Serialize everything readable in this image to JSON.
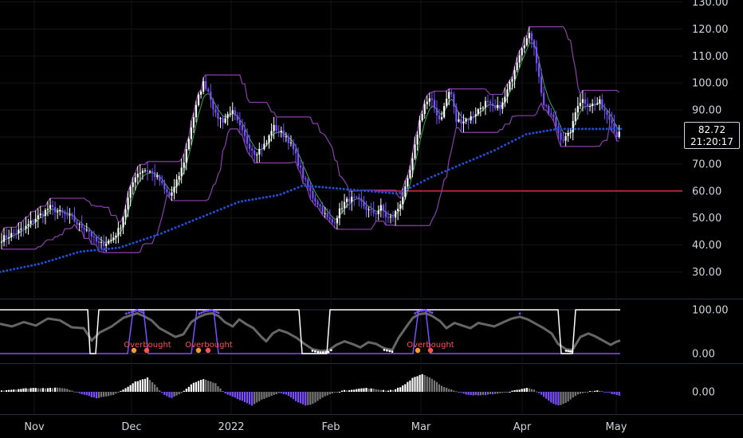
{
  "chart_data": [
    {
      "type": "candlestick",
      "panel": "price",
      "x_ticks": [
        "Nov",
        "Dec",
        "2022",
        "Feb",
        "Mar",
        "Apr",
        "May"
      ],
      "y_ticks": [
        "30.00",
        "40.00",
        "50.00",
        "60.00",
        "70.00",
        "80.00",
        "90.00",
        "100.00",
        "110.00",
        "120.00",
        "130.00"
      ],
      "ylim": [
        26,
        132
      ],
      "last_price": "82.72",
      "countdown": "21:20:17",
      "horizontal_line": {
        "value": 60,
        "color": "#b22234"
      },
      "close_path": [
        [
          0,
          42
        ],
        [
          15,
          44
        ],
        [
          30,
          46
        ],
        [
          45,
          50
        ],
        [
          55,
          52
        ],
        [
          62,
          54
        ],
        [
          75,
          52
        ],
        [
          90,
          50
        ],
        [
          100,
          47
        ],
        [
          110,
          46
        ],
        [
          118,
          42
        ],
        [
          125,
          40
        ],
        [
          133,
          41
        ],
        [
          140,
          42
        ],
        [
          150,
          46
        ],
        [
          158,
          54
        ],
        [
          163,
          60
        ],
        [
          170,
          66
        ],
        [
          180,
          68
        ],
        [
          190,
          67
        ],
        [
          200,
          64
        ],
        [
          207,
          60
        ],
        [
          213,
          58
        ],
        [
          220,
          62
        ],
        [
          230,
          70
        ],
        [
          240,
          84
        ],
        [
          250,
          96
        ],
        [
          255,
          100
        ],
        [
          260,
          98
        ],
        [
          265,
          94
        ],
        [
          270,
          88
        ],
        [
          280,
          86
        ],
        [
          290,
          90
        ],
        [
          300,
          84
        ],
        [
          310,
          78
        ],
        [
          320,
          74
        ],
        [
          328,
          76
        ],
        [
          335,
          78
        ],
        [
          342,
          84
        ],
        [
          350,
          82
        ],
        [
          360,
          80
        ],
        [
          370,
          74
        ],
        [
          378,
          67
        ],
        [
          385,
          62
        ],
        [
          392,
          58
        ],
        [
          400,
          55
        ],
        [
          410,
          50
        ],
        [
          418,
          48
        ],
        [
          425,
          52
        ],
        [
          430,
          55
        ],
        [
          438,
          57
        ],
        [
          445,
          57
        ],
        [
          452,
          56
        ],
        [
          458,
          54
        ],
        [
          465,
          52
        ],
        [
          472,
          52
        ],
        [
          478,
          54
        ],
        [
          485,
          50
        ],
        [
          492,
          50
        ],
        [
          500,
          54
        ],
        [
          510,
          62
        ],
        [
          518,
          72
        ],
        [
          525,
          84
        ],
        [
          532,
          92
        ],
        [
          540,
          94
        ],
        [
          546,
          90
        ],
        [
          552,
          86
        ],
        [
          560,
          94
        ],
        [
          565,
          98
        ],
        [
          572,
          86
        ],
        [
          580,
          86
        ],
        [
          590,
          87
        ],
        [
          600,
          90
        ],
        [
          610,
          93
        ],
        [
          620,
          90
        ],
        [
          630,
          92
        ],
        [
          640,
          100
        ],
        [
          648,
          108
        ],
        [
          655,
          114
        ],
        [
          660,
          116
        ],
        [
          665,
          118
        ],
        [
          670,
          114
        ],
        [
          676,
          102
        ],
        [
          682,
          92
        ],
        [
          688,
          89
        ],
        [
          694,
          87
        ],
        [
          700,
          82
        ],
        [
          705,
          79
        ],
        [
          712,
          80
        ],
        [
          718,
          84
        ],
        [
          724,
          92
        ],
        [
          730,
          94
        ],
        [
          738,
          92
        ],
        [
          746,
          92
        ],
        [
          752,
          93
        ],
        [
          758,
          90
        ],
        [
          763,
          88
        ],
        [
          768,
          86
        ],
        [
          772,
          80
        ],
        [
          777,
          82.72
        ]
      ],
      "series": [
        {
          "name": "",
          "color": "#1e4fd8",
          "style": "dotted",
          "points": [
            [
              0,
              30
            ],
            [
              50,
              33
            ],
            [
              100,
              37.5
            ],
            [
              150,
              39
            ],
            [
              200,
              44
            ],
            [
              250,
              50
            ],
            [
              300,
              56
            ],
            [
              350,
              58.5
            ],
            [
              380,
              62
            ],
            [
              420,
              61
            ],
            [
              460,
              60
            ],
            [
              500,
              59
            ],
            [
              540,
              65
            ],
            [
              580,
              70
            ],
            [
              620,
              75
            ],
            [
              660,
              81
            ],
            [
              700,
              83
            ],
            [
              740,
              83
            ],
            [
              780,
              83
            ]
          ]
        },
        {
          "name": "",
          "color": "#35a853",
          "style": "solid",
          "smoothing": 0.35
        },
        {
          "name": "",
          "color": "#8b3fa8",
          "style": "channel",
          "lookback": 14
        }
      ]
    },
    {
      "type": "line",
      "panel": "oscillator",
      "y_ticks": [
        "0.00",
        "100.00"
      ],
      "ylim": [
        -8,
        112
      ],
      "levels": [
        100,
        0
      ],
      "annotations": [
        {
          "x": 185,
          "text": "Overbought"
        },
        {
          "x": 262,
          "text": "Overbought"
        },
        {
          "x": 540,
          "text": "Overbought"
        }
      ],
      "series": [
        {
          "name": "",
          "color": "#666666",
          "style": "solid",
          "points": [
            [
              0,
              68
            ],
            [
              15,
              62
            ],
            [
              30,
              72
            ],
            [
              45,
              64
            ],
            [
              60,
              80
            ],
            [
              75,
              76
            ],
            [
              90,
              60
            ],
            [
              105,
              58
            ],
            [
              115,
              30
            ],
            [
              125,
              48
            ],
            [
              140,
              62
            ],
            [
              155,
              82
            ],
            [
              165,
              88
            ],
            [
              172,
              92
            ],
            [
              180,
              86
            ],
            [
              190,
              76
            ],
            [
              200,
              58
            ],
            [
              210,
              48
            ],
            [
              220,
              38
            ],
            [
              230,
              44
            ],
            [
              240,
              72
            ],
            [
              250,
              84
            ],
            [
              258,
              90
            ],
            [
              266,
              92
            ],
            [
              274,
              86
            ],
            [
              282,
              72
            ],
            [
              292,
              62
            ],
            [
              300,
              78
            ],
            [
              310,
              66
            ],
            [
              318,
              58
            ],
            [
              328,
              38
            ],
            [
              334,
              28
            ],
            [
              342,
              46
            ],
            [
              350,
              54
            ],
            [
              360,
              48
            ],
            [
              372,
              36
            ],
            [
              382,
              22
            ],
            [
              392,
              10
            ],
            [
              402,
              6
            ],
            [
              412,
              7
            ],
            [
              422,
              20
            ],
            [
              432,
              28
            ],
            [
              442,
              22
            ],
            [
              452,
              14
            ],
            [
              462,
              26
            ],
            [
              472,
              22
            ],
            [
              482,
              12
            ],
            [
              492,
              8
            ],
            [
              500,
              36
            ],
            [
              510,
              62
            ],
            [
              518,
              82
            ],
            [
              526,
              90
            ],
            [
              534,
              92
            ],
            [
              542,
              86
            ],
            [
              552,
              74
            ],
            [
              560,
              58
            ],
            [
              570,
              70
            ],
            [
              580,
              64
            ],
            [
              590,
              58
            ],
            [
              600,
              70
            ],
            [
              610,
              66
            ],
            [
              620,
              62
            ],
            [
              632,
              72
            ],
            [
              642,
              80
            ],
            [
              652,
              84
            ],
            [
              662,
              78
            ],
            [
              672,
              68
            ],
            [
              682,
              58
            ],
            [
              692,
              46
            ],
            [
              700,
              22
            ],
            [
              710,
              10
            ],
            [
              718,
              8
            ],
            [
              728,
              38
            ],
            [
              738,
              46
            ],
            [
              746,
              40
            ],
            [
              756,
              30
            ],
            [
              766,
              20
            ],
            [
              772,
              26
            ],
            [
              778,
              30
            ]
          ]
        },
        {
          "name": "",
          "color": "#ffffff",
          "style": "step",
          "points": [
            [
              0,
              100
            ],
            [
              110,
              100
            ],
            [
              113,
              0
            ],
            [
              120,
              0
            ],
            [
              124,
              100
            ],
            [
              375,
              100
            ],
            [
              379,
              0
            ],
            [
              410,
              0
            ],
            [
              414,
              100
            ],
            [
              700,
              100
            ],
            [
              704,
              0
            ],
            [
              718,
              0
            ],
            [
              722,
              100
            ],
            [
              778,
              100
            ]
          ]
        },
        {
          "name": "",
          "color": "#7b4fff",
          "style": "pulse",
          "points": [
            [
              0,
              0
            ],
            [
              160,
              0
            ],
            [
              167,
              100
            ],
            [
              180,
              100
            ],
            [
              186,
              0
            ],
            [
              240,
              0
            ],
            [
              247,
              100
            ],
            [
              268,
              100
            ],
            [
              274,
              0
            ],
            [
              518,
              0
            ],
            [
              525,
              100
            ],
            [
              534,
              100
            ],
            [
              540,
              0
            ],
            [
              778,
              0
            ]
          ]
        }
      ],
      "markers": [
        {
          "x": 168,
          "color": "#ff9a2e"
        },
        {
          "x": 184,
          "color": "#ff5252"
        },
        {
          "x": 249,
          "color": "#ff9a2e"
        },
        {
          "x": 261,
          "color": "#ff5252"
        },
        {
          "x": 524,
          "color": "#ff9a2e"
        },
        {
          "x": 540,
          "color": "#ff5252"
        }
      ]
    },
    {
      "type": "histogram",
      "panel": "momentum",
      "y_ticks": [
        "0.00"
      ],
      "zero_level": 0,
      "colors": {
        "positive_rising": "#ffffff",
        "positive_falling": "#777777",
        "negative_falling": "#7b4fff",
        "negative_rising": "#777777"
      },
      "profile": [
        [
          0,
          1
        ],
        [
          40,
          3
        ],
        [
          80,
          3
        ],
        [
          100,
          -1
        ],
        [
          120,
          -5
        ],
        [
          140,
          -3
        ],
        [
          155,
          2
        ],
        [
          170,
          8
        ],
        [
          185,
          11
        ],
        [
          195,
          5
        ],
        [
          205,
          -2
        ],
        [
          215,
          -5
        ],
        [
          228,
          -1
        ],
        [
          240,
          6
        ],
        [
          255,
          10
        ],
        [
          270,
          7
        ],
        [
          282,
          -1
        ],
        [
          300,
          -6
        ],
        [
          316,
          -11
        ],
        [
          326,
          -7
        ],
        [
          340,
          -3
        ],
        [
          350,
          -1
        ],
        [
          360,
          -2
        ],
        [
          372,
          -8
        ],
        [
          384,
          -11
        ],
        [
          394,
          -9
        ],
        [
          406,
          -4
        ],
        [
          418,
          -1
        ],
        [
          430,
          1
        ],
        [
          445,
          2
        ],
        [
          458,
          3
        ],
        [
          472,
          2
        ],
        [
          486,
          1
        ],
        [
          496,
          2
        ],
        [
          506,
          5
        ],
        [
          518,
          11
        ],
        [
          530,
          14
        ],
        [
          542,
          10
        ],
        [
          556,
          4
        ],
        [
          570,
          1
        ],
        [
          585,
          -2
        ],
        [
          600,
          -3
        ],
        [
          615,
          -2
        ],
        [
          630,
          -1
        ],
        [
          645,
          1
        ],
        [
          660,
          3
        ],
        [
          670,
          2
        ],
        [
          680,
          -3
        ],
        [
          692,
          -9
        ],
        [
          702,
          -11
        ],
        [
          712,
          -8
        ],
        [
          722,
          -3
        ],
        [
          735,
          0
        ],
        [
          748,
          1
        ],
        [
          760,
          0
        ],
        [
          770,
          -2
        ],
        [
          778,
          -3
        ]
      ]
    }
  ]
}
